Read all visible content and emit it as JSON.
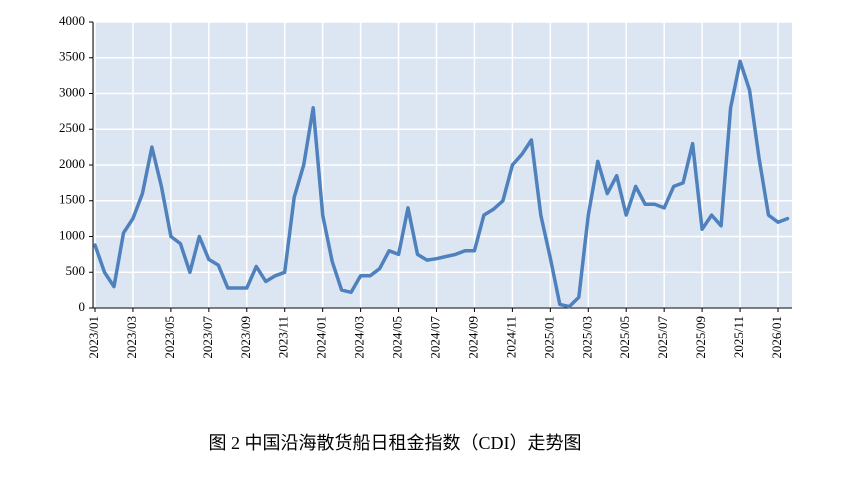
{
  "chart_data": {
    "type": "line",
    "caption": "图 2 中国沿海散货船日租金指数（CDI）走势图",
    "categories": [
      "2023/01",
      null,
      null,
      null,
      "2023/03",
      null,
      null,
      null,
      "2023/05",
      null,
      null,
      null,
      "2023/07",
      null,
      null,
      null,
      "2023/09",
      null,
      null,
      null,
      "2023/11",
      null,
      null,
      null,
      "2024/01",
      null,
      null,
      null,
      "2024/03",
      null,
      null,
      null,
      "2024/05",
      null,
      null,
      null,
      "2024/07",
      null,
      null,
      null,
      "2024/09",
      null,
      null,
      null,
      "2024/11",
      null,
      null,
      null,
      "2025/01",
      null,
      null,
      null,
      "2025/03",
      null,
      null,
      null,
      "2025/05",
      null,
      null,
      null,
      "2025/07",
      null,
      null,
      null,
      "2025/09",
      null,
      null,
      null,
      "2025/11",
      null,
      null,
      null,
      "2026/01",
      null
    ],
    "series": [
      {
        "name": "CDI",
        "color": "#4f81bd",
        "values": [
          880,
          500,
          300,
          1050,
          1250,
          1600,
          2250,
          1700,
          1000,
          900,
          500,
          1000,
          680,
          600,
          280,
          280,
          280,
          580,
          370,
          450,
          500,
          1550,
          2000,
          2800,
          1300,
          650,
          250,
          220,
          450,
          450,
          550,
          800,
          750,
          1400,
          750,
          670,
          690,
          720,
          750,
          800,
          800,
          1300,
          1380,
          1500,
          2000,
          2150,
          2350,
          1300,
          700,
          50,
          20,
          150,
          1300,
          2050,
          1600,
          1850,
          1300,
          1700,
          1450,
          1450,
          1400,
          1700,
          1750,
          2300,
          1100,
          1300,
          1150,
          2800,
          3450,
          3050,
          2100,
          1300,
          1200,
          1250
        ]
      }
    ],
    "ylim": [
      0,
      4000
    ],
    "yticks": [
      0,
      500,
      1000,
      1500,
      2000,
      2500,
      3000,
      3500,
      4000
    ],
    "grid": true
  }
}
